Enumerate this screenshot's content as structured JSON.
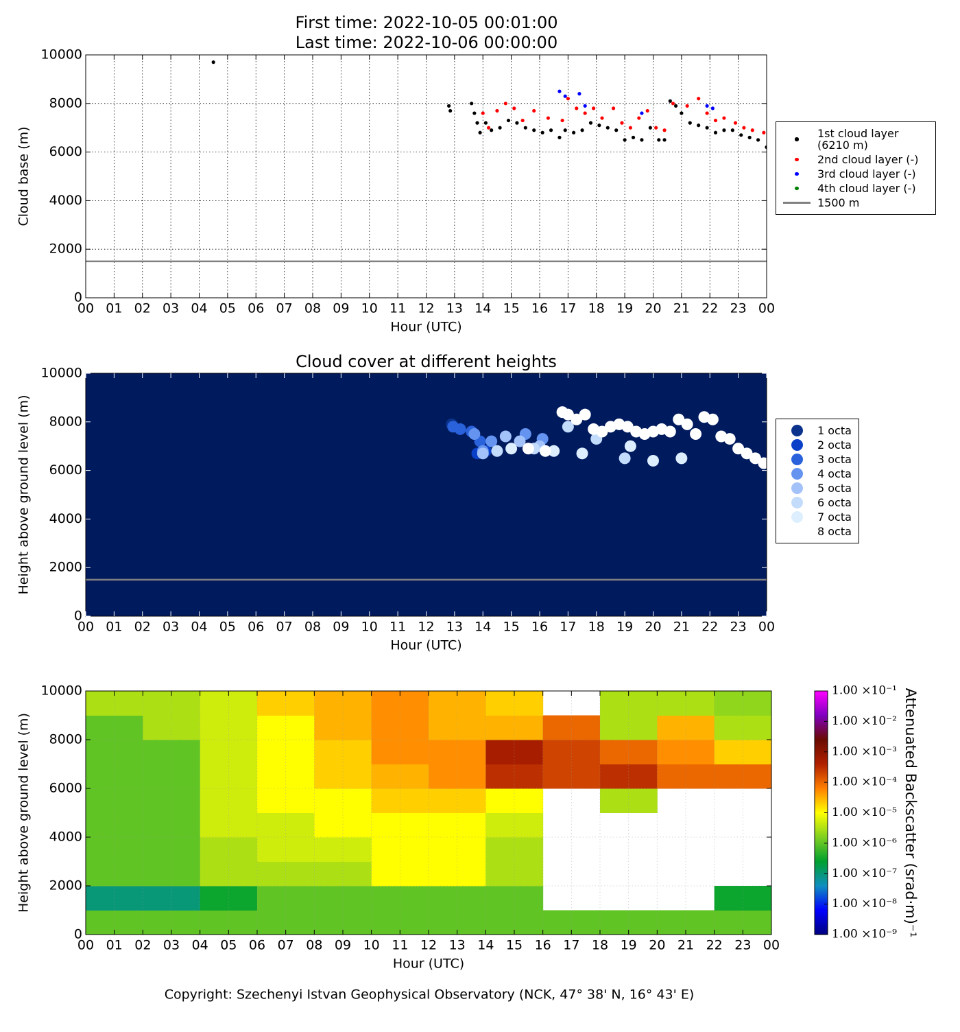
{
  "chart_data": [
    {
      "type": "scatter",
      "title": "First time: 2022-10-05 00:01:00",
      "subtitle": "Last time: 2022-10-06 00:00:00",
      "xlabel": "Hour (UTC)",
      "ylabel": "Cloud base (m)",
      "xlim": [
        0,
        24
      ],
      "ylim": [
        0,
        10000
      ],
      "xticks": [
        {
          "value": 0,
          "label": "00"
        },
        {
          "value": 1,
          "label": "01"
        },
        {
          "value": 2,
          "label": "02"
        },
        {
          "value": 3,
          "label": "03"
        },
        {
          "value": 4,
          "label": "04"
        },
        {
          "value": 5,
          "label": "05"
        },
        {
          "value": 6,
          "label": "06"
        },
        {
          "value": 7,
          "label": "07"
        },
        {
          "value": 8,
          "label": "08"
        },
        {
          "value": 9,
          "label": "09"
        },
        {
          "value": 10,
          "label": "10"
        },
        {
          "value": 11,
          "label": "11"
        },
        {
          "value": 12,
          "label": "12"
        },
        {
          "value": 13,
          "label": "13"
        },
        {
          "value": 14,
          "label": "14"
        },
        {
          "value": 15,
          "label": "15"
        },
        {
          "value": 16,
          "label": "16"
        },
        {
          "value": 17,
          "label": "17"
        },
        {
          "value": 18,
          "label": "18"
        },
        {
          "value": 19,
          "label": "19"
        },
        {
          "value": 20,
          "label": "20"
        },
        {
          "value": 21,
          "label": "21"
        },
        {
          "value": 22,
          "label": "22"
        },
        {
          "value": 23,
          "label": "23"
        },
        {
          "value": 24,
          "label": "00"
        }
      ],
      "yticks": [
        0,
        2000,
        4000,
        6000,
        8000,
        10000
      ],
      "grid": true,
      "legend": "outside right",
      "series": [
        {
          "name": "1st cloud layer\n(6210 m)",
          "color": "#000000",
          "x": [
            4.5,
            12.8,
            12.85,
            13.6,
            13.7,
            13.8,
            13.9,
            14.1,
            14.3,
            14.6,
            14.9,
            15.2,
            15.5,
            15.8,
            16.1,
            16.4,
            16.7,
            16.9,
            17.2,
            17.5,
            17.8,
            18.1,
            18.4,
            18.7,
            19.0,
            19.3,
            19.6,
            19.9,
            20.2,
            20.4,
            20.6,
            20.8,
            21.0,
            21.3,
            21.6,
            21.9,
            22.2,
            22.5,
            22.8,
            23.1,
            23.4,
            23.7,
            24.0
          ],
          "values": [
            9700,
            7900,
            7700,
            8000,
            7600,
            7200,
            6800,
            7200,
            6900,
            7000,
            7300,
            7200,
            7000,
            6900,
            6800,
            6900,
            6600,
            6900,
            6800,
            6900,
            7200,
            7100,
            7000,
            6900,
            6500,
            6600,
            6500,
            7000,
            6500,
            6500,
            8100,
            7900,
            7600,
            7200,
            7100,
            7000,
            6800,
            6900,
            6900,
            6700,
            6600,
            6500,
            6200
          ]
        },
        {
          "name": "2nd cloud layer (-)",
          "color": "#ff0000",
          "x": [
            14.0,
            14.2,
            14.5,
            14.8,
            15.1,
            15.4,
            15.8,
            16.3,
            16.8,
            17.0,
            17.3,
            17.6,
            17.9,
            18.2,
            18.6,
            18.9,
            19.2,
            19.5,
            19.8,
            20.1,
            20.4,
            20.7,
            21.2,
            21.6,
            21.9,
            22.2,
            22.5,
            22.9,
            23.2,
            23.5,
            23.9
          ],
          "values": [
            7600,
            7000,
            7700,
            8000,
            7800,
            7300,
            7700,
            7400,
            7300,
            8200,
            7800,
            7600,
            7800,
            7400,
            7800,
            7200,
            7000,
            7400,
            7700,
            7000,
            6900,
            8000,
            7900,
            8200,
            7600,
            7300,
            7400,
            7200,
            7000,
            6900,
            6800
          ]
        },
        {
          "name": "3rd cloud layer (-)",
          "color": "#0000ff",
          "x": [
            16.7,
            16.9,
            17.4,
            17.6,
            19.6,
            21.9,
            22.1
          ],
          "values": [
            8500,
            8300,
            8400,
            7900,
            7600,
            7900,
            7800
          ]
        },
        {
          "name": "4th cloud layer (-)",
          "color": "#008000",
          "x": [],
          "values": []
        }
      ],
      "hline": {
        "name": "1500 m",
        "value": 1500,
        "color": "#808080"
      }
    },
    {
      "type": "scatter",
      "title": "Cloud cover at different heights",
      "xlabel": "Hour (UTC)",
      "ylabel": "Height above ground level (m)",
      "xlim": [
        0,
        24
      ],
      "ylim": [
        0,
        10000
      ],
      "xticks": [
        {
          "value": 0,
          "label": "00"
        },
        {
          "value": 1,
          "label": "01"
        },
        {
          "value": 2,
          "label": "02"
        },
        {
          "value": 3,
          "label": "03"
        },
        {
          "value": 4,
          "label": "04"
        },
        {
          "value": 5,
          "label": "05"
        },
        {
          "value": 6,
          "label": "06"
        },
        {
          "value": 7,
          "label": "07"
        },
        {
          "value": 8,
          "label": "08"
        },
        {
          "value": 9,
          "label": "09"
        },
        {
          "value": 10,
          "label": "10"
        },
        {
          "value": 11,
          "label": "11"
        },
        {
          "value": 12,
          "label": "12"
        },
        {
          "value": 13,
          "label": "13"
        },
        {
          "value": 14,
          "label": "14"
        },
        {
          "value": 15,
          "label": "15"
        },
        {
          "value": 16,
          "label": "16"
        },
        {
          "value": 17,
          "label": "17"
        },
        {
          "value": 18,
          "label": "18"
        },
        {
          "value": 19,
          "label": "19"
        },
        {
          "value": 20,
          "label": "20"
        },
        {
          "value": 21,
          "label": "21"
        },
        {
          "value": 22,
          "label": "22"
        },
        {
          "value": 23,
          "label": "23"
        },
        {
          "value": 24,
          "label": "00"
        }
      ],
      "yticks": [
        0,
        2000,
        4000,
        6000,
        8000,
        10000
      ],
      "grid": false,
      "legend": "outside right",
      "background": "#001a5e",
      "series": [
        {
          "name": "1 octa",
          "color": "#0c338c",
          "x": [
            12.9
          ],
          "values": [
            7900
          ]
        },
        {
          "name": "2 octa",
          "color": "#0a40c8",
          "x": [
            13.8,
            14.1
          ],
          "values": [
            6700,
            6800
          ]
        },
        {
          "name": "3 octa",
          "color": "#2a62dc",
          "x": [
            12.95,
            13.2,
            13.6,
            13.9
          ],
          "values": [
            7800,
            7700,
            7600,
            7200
          ]
        },
        {
          "name": "4 octa",
          "color": "#6494f0",
          "x": [
            13.7,
            14.0,
            14.3,
            15.5,
            16.1
          ],
          "values": [
            7500,
            6800,
            7200,
            7500,
            7300
          ]
        },
        {
          "name": "5 octa",
          "color": "#a4c2fa",
          "x": [
            14.0,
            14.8,
            15.3,
            16.0
          ],
          "values": [
            6700,
            7400,
            7200,
            7000
          ]
        },
        {
          "name": "6 octa",
          "color": "#c4dcfc",
          "x": [
            14.5,
            15.8,
            17.0,
            18.0,
            19.0
          ],
          "values": [
            6800,
            6900,
            7800,
            7300,
            6500
          ]
        },
        {
          "name": "7 octa",
          "color": "#ddeffe",
          "x": [
            15.0,
            16.5,
            17.5,
            19.2,
            20.0,
            21.0
          ],
          "values": [
            6900,
            6800,
            6700,
            7000,
            6400,
            6500
          ]
        },
        {
          "name": "8 octa",
          "color": "#ffffff",
          "x": [
            15.6,
            16.2,
            16.8,
            17.0,
            17.3,
            17.6,
            17.9,
            18.2,
            18.5,
            18.8,
            19.1,
            19.4,
            19.7,
            20.0,
            20.3,
            20.6,
            20.9,
            21.2,
            21.5,
            21.8,
            22.1,
            22.4,
            22.7,
            23.0,
            23.3,
            23.6,
            23.9
          ],
          "values": [
            6900,
            6800,
            8400,
            8300,
            8100,
            8300,
            7700,
            7600,
            7800,
            7900,
            7800,
            7600,
            7500,
            7600,
            7700,
            7600,
            8100,
            7900,
            7500,
            8200,
            8100,
            7400,
            7300,
            6900,
            6700,
            6500,
            6300
          ]
        }
      ],
      "hline": {
        "value": 1500,
        "color": "#808080"
      }
    },
    {
      "type": "heatmap",
      "xlabel": "Hour (UTC)",
      "ylabel": "Height above ground level (m)",
      "xlim": [
        0,
        24
      ],
      "ylim": [
        0,
        10000
      ],
      "xticks": [
        {
          "value": 0,
          "label": "00"
        },
        {
          "value": 1,
          "label": "01"
        },
        {
          "value": 2,
          "label": "02"
        },
        {
          "value": 3,
          "label": "03"
        },
        {
          "value": 4,
          "label": "04"
        },
        {
          "value": 5,
          "label": "05"
        },
        {
          "value": 6,
          "label": "06"
        },
        {
          "value": 7,
          "label": "07"
        },
        {
          "value": 8,
          "label": "08"
        },
        {
          "value": 9,
          "label": "09"
        },
        {
          "value": 10,
          "label": "10"
        },
        {
          "value": 11,
          "label": "11"
        },
        {
          "value": 12,
          "label": "12"
        },
        {
          "value": 13,
          "label": "13"
        },
        {
          "value": 14,
          "label": "14"
        },
        {
          "value": 15,
          "label": "15"
        },
        {
          "value": 16,
          "label": "16"
        },
        {
          "value": 17,
          "label": "17"
        },
        {
          "value": 18,
          "label": "18"
        },
        {
          "value": 19,
          "label": "19"
        },
        {
          "value": 20,
          "label": "20"
        },
        {
          "value": 21,
          "label": "21"
        },
        {
          "value": 22,
          "label": "22"
        },
        {
          "value": 23,
          "label": "23"
        },
        {
          "value": 24,
          "label": "00"
        }
      ],
      "yticks": [
        0,
        2000,
        4000,
        6000,
        8000,
        10000
      ],
      "grid": true,
      "xbins": [
        0,
        2,
        4,
        6,
        8,
        10,
        12,
        14,
        16,
        18,
        20,
        22,
        24
      ],
      "ybins": [
        0,
        1000,
        2000,
        3000,
        4000,
        5000,
        6000,
        7000,
        8000,
        9000,
        10000
      ],
      "values": [
        [
          1e-06,
          1e-06,
          1e-06,
          1e-06,
          1e-06,
          1e-06,
          1e-06,
          1e-06,
          1e-06,
          1e-06,
          1e-06,
          1e-06
        ],
        [
          1e-07,
          1e-07,
          3e-07,
          1e-06,
          1e-06,
          1e-06,
          1e-06,
          1e-06,
          null,
          null,
          null,
          3e-07
        ],
        [
          1e-06,
          1e-06,
          3e-06,
          3e-06,
          3e-06,
          1e-05,
          1e-05,
          3e-06,
          null,
          null,
          null,
          null
        ],
        [
          1e-06,
          1e-06,
          3e-06,
          5e-06,
          5e-06,
          1e-05,
          1e-05,
          3e-06,
          null,
          null,
          null,
          null
        ],
        [
          1e-06,
          1e-06,
          5e-06,
          5e-06,
          1e-05,
          1e-05,
          1e-05,
          5e-06,
          null,
          null,
          null,
          null
        ],
        [
          1e-06,
          1e-06,
          5e-06,
          1e-05,
          1e-05,
          2e-05,
          2e-05,
          1e-05,
          null,
          3e-06,
          null,
          null
        ],
        [
          1e-06,
          1e-06,
          5e-06,
          1e-05,
          2e-05,
          3e-05,
          5e-05,
          0.0003,
          0.0002,
          0.0003,
          0.0001,
          0.0001
        ],
        [
          1e-06,
          1e-06,
          5e-06,
          1e-05,
          2e-05,
          5e-05,
          5e-05,
          0.0005,
          0.0002,
          0.0001,
          5e-05,
          2e-05
        ],
        [
          1e-06,
          3e-06,
          5e-06,
          1e-05,
          3e-05,
          5e-05,
          3e-05,
          3e-05,
          0.0001,
          3e-06,
          3e-05,
          3e-06
        ],
        [
          3e-06,
          3e-06,
          5e-06,
          2e-05,
          3e-05,
          5e-05,
          3e-05,
          2e-05,
          null,
          3e-06,
          3e-06,
          2e-06
        ]
      ],
      "clim": [
        1e-09,
        0.1
      ],
      "log_color": true,
      "colormap": [
        "#00007f",
        "#0000ff",
        "#0f8fbf",
        "#00a030",
        "#80d020",
        "#ffff00",
        "#ff7f00",
        "#b02000",
        "#6a0a00",
        "#8000c0",
        "#ff00ff"
      ],
      "colorbar_label": "Attenuated Backscatter (srad·m)⁻¹",
      "cticks": [
        {
          "value": 1e-09,
          "label": "1.00 ×10⁻⁹"
        },
        {
          "value": 1e-08,
          "label": "1.00 ×10⁻⁸"
        },
        {
          "value": 1e-07,
          "label": "1.00 ×10⁻⁷"
        },
        {
          "value": 1e-06,
          "label": "1.00 ×10⁻⁶"
        },
        {
          "value": 1e-05,
          "label": "1.00 ×10⁻⁵"
        },
        {
          "value": 0.0001,
          "label": "1.00 ×10⁻⁴"
        },
        {
          "value": 0.001,
          "label": "1.00 ×10⁻³"
        },
        {
          "value": 0.01,
          "label": "1.00 ×10⁻²"
        },
        {
          "value": 0.1,
          "label": "1.00 ×10⁻¹"
        }
      ]
    }
  ],
  "footer": "Copyright: Szechenyi Istvan Geophysical Observatory (NCK, 47° 38' N, 16° 43' E)"
}
